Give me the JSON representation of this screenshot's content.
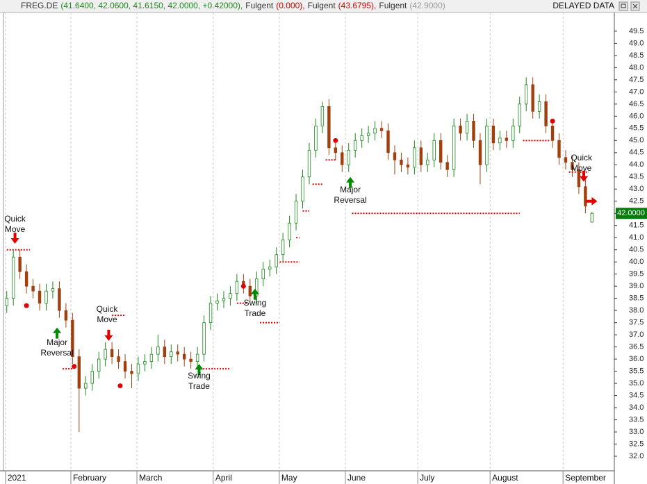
{
  "header": {
    "parts": [
      {
        "text": "FREG.DE",
        "color": "#333333"
      },
      {
        "text": "(41.6400, 42.0600, 41.6150, 42.0000, +0.42000),",
        "color": "#1a8a1a"
      },
      {
        "text": "Fulgent",
        "color": "#333333"
      },
      {
        "text": "(0.000),",
        "color": "#d00000"
      },
      {
        "text": "Fulgent",
        "color": "#333333"
      },
      {
        "text": "(43.6795),",
        "color": "#d00000"
      },
      {
        "text": "Fulgent",
        "color": "#333333"
      },
      {
        "text": "(42.9000)",
        "color": "#999999"
      }
    ],
    "status": "DELAYED DATA"
  },
  "chart_data": {
    "type": "candlestick",
    "up_color": "#1a8a1a",
    "down_color": "#a0400f",
    "grid": true,
    "xlim": [
      -1,
      184.8
    ],
    "ylim": [
      31.4,
      50.27
    ],
    "xticks": [
      {
        "value": -0.4,
        "label": "2021"
      },
      {
        "value": 19.5,
        "label": "February"
      },
      {
        "value": 39.6,
        "label": "March"
      },
      {
        "value": 62.8,
        "label": "April"
      },
      {
        "value": 82.9,
        "label": "May"
      },
      {
        "value": 103,
        "label": "June"
      },
      {
        "value": 125,
        "label": "July"
      },
      {
        "value": 147,
        "label": "August"
      },
      {
        "value": 169.2,
        "label": "September"
      }
    ],
    "yticks": [
      {
        "value": 32,
        "label": "32.0"
      },
      32.5,
      {
        "value": 33,
        "label": "33.0"
      },
      33.5,
      {
        "value": 34,
        "label": "34.0"
      },
      34.5,
      {
        "value": 35,
        "label": "35.0"
      },
      35.5,
      {
        "value": 36,
        "label": "36.0"
      },
      36.5,
      {
        "value": 37,
        "label": "37.0"
      },
      37.5,
      {
        "value": 38,
        "label": "38.0"
      },
      38.5,
      {
        "value": 39,
        "label": "39.0"
      },
      39.5,
      {
        "value": 40,
        "label": "40.0"
      },
      40.5,
      {
        "value": 41,
        "label": "41.0"
      },
      41.5,
      {
        "value": 42,
        "label": "42.0"
      },
      42.5,
      {
        "value": 43,
        "label": "43.0"
      },
      43.5,
      {
        "value": 44,
        "label": "44.0"
      },
      44.5,
      {
        "value": 45,
        "label": "45.0"
      },
      45.5,
      {
        "value": 46,
        "label": "46.0"
      },
      46.5,
      {
        "value": 47,
        "label": "47.0"
      },
      47.5,
      {
        "value": 48,
        "label": "48.0"
      },
      48.5,
      {
        "value": 49,
        "label": "49.0"
      },
      49.5
    ],
    "x": [
      0,
      2,
      4,
      6,
      8,
      10,
      12,
      14,
      16,
      18,
      20,
      22,
      24,
      26,
      28,
      30,
      32,
      34,
      36,
      38,
      40,
      42,
      44,
      46,
      48,
      50,
      52,
      54,
      56,
      58,
      60,
      62,
      64,
      66,
      68,
      70,
      72,
      74,
      76,
      78,
      80,
      82,
      84,
      86,
      88,
      90,
      92,
      94,
      96,
      98,
      100,
      102,
      104,
      106,
      108,
      110,
      112,
      114,
      116,
      118,
      120,
      122,
      124,
      126,
      128,
      130,
      132,
      134,
      136,
      138,
      140,
      142,
      144,
      146,
      148,
      150,
      152,
      154,
      156,
      158,
      160,
      162,
      164,
      166,
      168,
      170,
      172,
      174,
      176,
      178
    ],
    "open": [
      38.2,
      38.5,
      40.2,
      39.6,
      39.0,
      38.8,
      38.3,
      38.8,
      38.9,
      38.0,
      37.6,
      36.1,
      34.8,
      35.0,
      35.5,
      36.0,
      36.4,
      36.1,
      35.9,
      35.5,
      35.4,
      35.8,
      35.9,
      36.2,
      36.5,
      36.1,
      36.3,
      36.2,
      36.0,
      35.9,
      36.2,
      37.5,
      38.3,
      38.4,
      38.5,
      38.7,
      39.2,
      39.0,
      38.6,
      39.3,
      39.7,
      39.8,
      40.3,
      40.9,
      41.6,
      42.5,
      43.5,
      44.6,
      45.6,
      46.4,
      44.7,
      44.5,
      44.0,
      44.6,
      45.0,
      45.2,
      45.3,
      45.5,
      45.4,
      44.5,
      44.2,
      44.0,
      43.9,
      44.7,
      44.0,
      44.2,
      45.0,
      44.1,
      43.8,
      45.6,
      45.3,
      45.8,
      45.0,
      44.0,
      45.6,
      44.9,
      45.1,
      45.0,
      45.6,
      46.5,
      47.3,
      46.2,
      46.6,
      45.6,
      45.0,
      44.3,
      44.1,
      43.8,
      43.1,
      41.64
    ],
    "high": [
      38.8,
      40.5,
      40.5,
      39.9,
      39.3,
      39.1,
      39.1,
      39.2,
      39.2,
      38.3,
      37.9,
      36.4,
      35.3,
      35.8,
      36.3,
      36.7,
      36.7,
      36.4,
      36.2,
      35.8,
      36.1,
      36.2,
      36.5,
      37.0,
      36.8,
      36.6,
      36.6,
      36.5,
      36.3,
      36.5,
      37.8,
      38.6,
      38.7,
      38.8,
      39.0,
      39.5,
      39.5,
      39.3,
      39.6,
      40.0,
      40.1,
      40.6,
      41.2,
      41.9,
      42.8,
      43.8,
      44.9,
      45.9,
      46.6,
      46.7,
      45.0,
      44.8,
      44.9,
      45.3,
      45.5,
      45.6,
      45.8,
      45.8,
      45.7,
      44.8,
      44.5,
      44.3,
      45.0,
      45.0,
      44.5,
      45.3,
      45.3,
      44.4,
      45.9,
      45.9,
      46.1,
      46.1,
      45.3,
      45.9,
      45.9,
      45.4,
      45.4,
      45.9,
      46.8,
      47.6,
      47.6,
      46.9,
      46.9,
      45.9,
      45.3,
      44.6,
      44.4,
      44.1,
      43.4,
      42.06
    ],
    "low": [
      37.9,
      38.2,
      39.3,
      38.7,
      38.5,
      38.0,
      38.0,
      38.5,
      37.7,
      37.3,
      35.8,
      33.0,
      34.5,
      34.7,
      35.2,
      35.7,
      35.8,
      35.6,
      35.2,
      34.8,
      35.1,
      35.5,
      35.6,
      35.9,
      35.8,
      35.8,
      35.9,
      35.7,
      35.6,
      35.6,
      35.9,
      37.2,
      38.0,
      38.1,
      38.2,
      38.4,
      38.7,
      38.3,
      38.3,
      39.0,
      39.4,
      39.5,
      40.0,
      40.6,
      41.3,
      42.2,
      43.2,
      44.3,
      45.3,
      44.4,
      44.2,
      43.7,
      43.7,
      44.3,
      44.7,
      44.9,
      45.0,
      45.1,
      44.2,
      43.6,
      43.7,
      43.6,
      43.6,
      43.7,
      43.7,
      43.9,
      43.8,
      43.5,
      43.5,
      45.0,
      45.0,
      44.7,
      43.2,
      43.7,
      44.6,
      44.6,
      44.7,
      44.7,
      45.3,
      46.2,
      45.9,
      45.9,
      45.3,
      44.7,
      44.0,
      43.8,
      43.5,
      42.8,
      42.0,
      41.615
    ],
    "close": [
      38.5,
      40.2,
      39.6,
      39.0,
      38.8,
      38.3,
      38.8,
      38.9,
      38.0,
      37.6,
      36.1,
      34.8,
      35.0,
      35.5,
      36.0,
      36.4,
      36.1,
      35.9,
      35.5,
      35.4,
      35.8,
      35.9,
      36.2,
      36.5,
      36.1,
      36.3,
      36.2,
      36.0,
      35.9,
      36.2,
      37.5,
      38.3,
      38.4,
      38.5,
      38.7,
      39.2,
      39.0,
      38.6,
      39.3,
      39.7,
      39.8,
      40.3,
      40.9,
      41.6,
      42.5,
      43.5,
      44.6,
      45.6,
      46.4,
      44.7,
      44.5,
      44.0,
      44.6,
      45.0,
      45.2,
      45.3,
      45.5,
      45.4,
      44.5,
      44.2,
      44.0,
      43.9,
      44.7,
      44.0,
      44.2,
      45.0,
      44.1,
      43.8,
      45.6,
      45.3,
      45.8,
      45.0,
      44.0,
      45.6,
      44.9,
      45.1,
      45.0,
      45.6,
      46.5,
      47.3,
      46.2,
      46.6,
      45.6,
      45.0,
      44.3,
      44.1,
      43.8,
      43.1,
      42.3,
      42.0
    ],
    "stops": [
      {
        "x": [
          0,
          7
        ],
        "y": 40.5
      },
      {
        "x": [
          17,
          20
        ],
        "y": 35.6
      },
      {
        "x": [
          32,
          36
        ],
        "y": 37.8
      },
      {
        "x": [
          58,
          68
        ],
        "y": 35.6
      },
      {
        "x": [
          70,
          73
        ],
        "y": 38.3
      },
      {
        "x": [
          77,
          83
        ],
        "y": 37.5
      },
      {
        "x": [
          83,
          89
        ],
        "y": 40.0
      },
      {
        "x": [
          88,
          89
        ],
        "y": 41.0
      },
      {
        "x": [
          90,
          92
        ],
        "y": 42.1
      },
      {
        "x": [
          93,
          96
        ],
        "y": 43.2
      },
      {
        "x": [
          97,
          100
        ],
        "y": 44.2
      },
      {
        "x": [
          105,
          156
        ],
        "y": 42.0
      },
      {
        "x": [
          157,
          165
        ],
        "y": 45.0
      },
      {
        "x": [
          171,
          177
        ],
        "y": 43.7
      }
    ],
    "dots": [
      {
        "x": 6,
        "y": 38.2
      },
      {
        "x": 20.5,
        "y": 35.7
      },
      {
        "x": 34.5,
        "y": 34.9
      },
      {
        "x": 72,
        "y": 39.0
      },
      {
        "x": 100,
        "y": 45.0
      },
      {
        "x": 166,
        "y": 45.8
      }
    ],
    "signals": [
      {
        "x": 2.5,
        "y": 40.75,
        "dir": "down"
      },
      {
        "x": 31,
        "y": 36.75,
        "dir": "down"
      },
      {
        "x": 175.5,
        "y": 43.3,
        "dir": "down"
      },
      {
        "x": 15.3,
        "y": 37.3,
        "dir": "up"
      },
      {
        "x": 58.5,
        "y": 35.8,
        "dir": "up"
      },
      {
        "x": 75.5,
        "y": 38.9,
        "dir": "up"
      },
      {
        "x": 104.5,
        "y": 43.5,
        "dir": "up"
      },
      {
        "x": 177.5,
        "y": 42.5,
        "dir": "right"
      }
    ],
    "annotations": [
      {
        "text": "Quick Move",
        "x": 2.5,
        "y": 41.95
      },
      {
        "text": "Major Reversal",
        "x": 15.3,
        "y": 36.86
      },
      {
        "text": "Quick Move",
        "x": 30.5,
        "y": 38.23
      },
      {
        "text": "Swing Trade",
        "x": 58.5,
        "y": 35.49
      },
      {
        "text": "Swing Trade",
        "x": 75.5,
        "y": 38.49
      },
      {
        "text": "Major Reversal",
        "x": 104.5,
        "y": 43.15
      },
      {
        "text": "Quick Move",
        "x": 174.8,
        "y": 44.47
      }
    ],
    "last_price": {
      "value": 42.0,
      "label": "42.0000"
    }
  }
}
